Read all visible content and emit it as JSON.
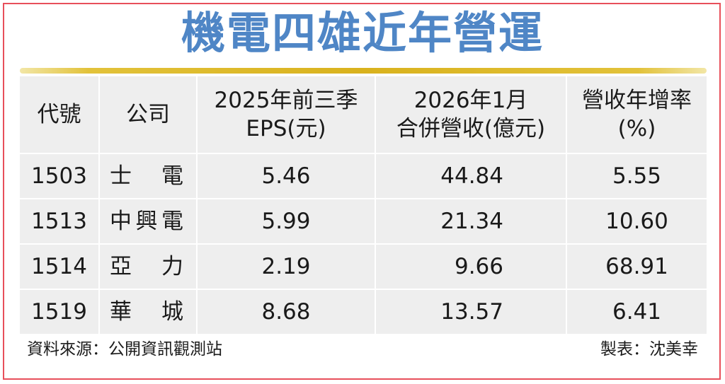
{
  "title": "機電四雄近年營運",
  "colors": {
    "title": "#4f86c6",
    "gold_bar": "#d9b21d",
    "border": "#e8505b",
    "table_bg": "#eeeeee"
  },
  "chart_data": {
    "type": "table",
    "title": "機電四雄近年營運",
    "columns": [
      {
        "line1": "代號",
        "line2": ""
      },
      {
        "line1": "公司",
        "line2": ""
      },
      {
        "line1": "2025年前三季",
        "line2": "EPS(元)"
      },
      {
        "line1": "2026年1月",
        "line2": "合併營收(億元)"
      },
      {
        "line1": "營收年增率",
        "line2": "(%)"
      }
    ],
    "rows": [
      {
        "code": "1503",
        "name": [
          "士",
          "電"
        ],
        "eps": "5.46",
        "revenue": "44.84",
        "growth": "5.55"
      },
      {
        "code": "1513",
        "name": [
          "中",
          "興",
          "電"
        ],
        "eps": "5.99",
        "revenue": "21.34",
        "growth": "10.60"
      },
      {
        "code": "1514",
        "name": [
          "亞",
          "力"
        ],
        "eps": "2.19",
        "revenue": "9.66",
        "growth": "68.91"
      },
      {
        "code": "1519",
        "name": [
          "華",
          "城"
        ],
        "eps": "8.68",
        "revenue": "13.57",
        "growth": "6.41"
      }
    ]
  },
  "footer": {
    "source": "資料來源：公開資訊觀測站",
    "author": "製表：沈美幸"
  }
}
